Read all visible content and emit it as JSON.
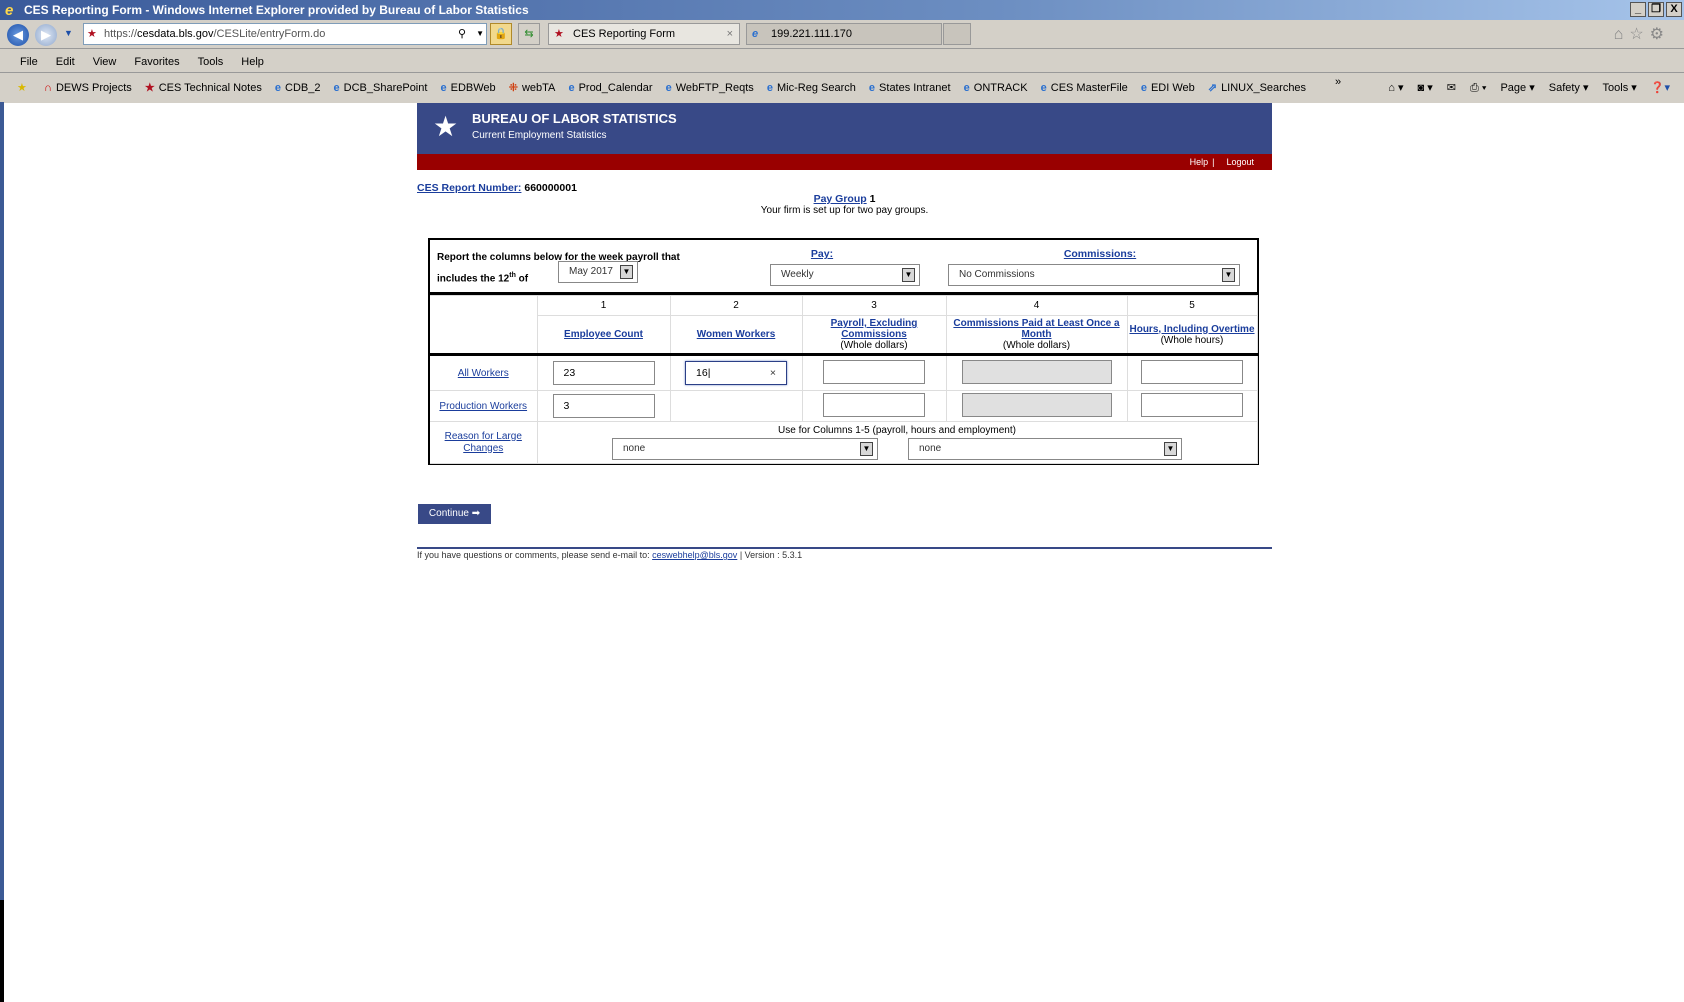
{
  "window": {
    "title": "CES Reporting Form - Windows Internet Explorer provided by Bureau of Labor Statistics",
    "controls": [
      "_",
      "❐",
      "X"
    ]
  },
  "browser": {
    "url_prefix": "https://",
    "url_domain": "cesdata.bls.gov",
    "url_path": "/CESLite/entryForm.do",
    "tabs": [
      {
        "label": "CES Reporting Form",
        "active": true
      },
      {
        "label": "199.221.111.170",
        "active": false
      }
    ],
    "menu": [
      "File",
      "Edit",
      "View",
      "Favorites",
      "Tools",
      "Help"
    ],
    "favorites": [
      "DEWS Projects",
      "CES Technical Notes",
      "CDB_2",
      "DCB_SharePoint",
      "EDBWeb",
      "webTA",
      "Prod_Calendar",
      "WebFTP_Reqts",
      "Mic-Reg Search",
      "States Intranet",
      "ONTRACK",
      "CES MasterFile",
      "EDI Web",
      "LINUX_Searches"
    ],
    "commands": [
      "Page ▾",
      "Safety ▾",
      "Tools ▾"
    ]
  },
  "header": {
    "org": "BUREAU OF LABOR STATISTICS",
    "program": "Current Employment Statistics",
    "help": "Help",
    "logout": "Logout",
    "colors": {
      "banner": "#384987",
      "bar": "#990000"
    }
  },
  "report": {
    "number_label": "CES Report Number:",
    "number": "660000001",
    "pay_group_label": "Pay Group",
    "pay_group": "1",
    "pay_group_note": "Your firm is set up for two pay groups."
  },
  "form": {
    "intro_line1": "Report the columns below for the week payroll that",
    "intro_line2a": "includes the 12",
    "intro_sup": "th",
    "intro_line2b": " of",
    "month": "May 2017",
    "pay_label": "Pay:",
    "pay": "Weekly",
    "commissions_label": "Commissions:",
    "commissions": "No Commissions",
    "columns": [
      {
        "num": "1",
        "title": "Employee Count",
        "unit": ""
      },
      {
        "num": "2",
        "title": "Women Workers",
        "unit": ""
      },
      {
        "num": "3",
        "title": "Payroll, Excluding Commissions",
        "unit": "(Whole dollars)"
      },
      {
        "num": "4",
        "title": "Commissions Paid at Least Once a Month",
        "unit": "(Whole dollars)"
      },
      {
        "num": "5",
        "title": "Hours, Including Overtime",
        "unit": "(Whole hours)"
      }
    ],
    "rows": [
      {
        "label": "All Workers",
        "values": [
          "23",
          "16",
          "",
          "",
          ""
        ]
      },
      {
        "label": "Production Workers",
        "values": [
          "3",
          "",
          "",
          ""
        ]
      }
    ],
    "reason_label": "Reason for Large Changes",
    "reason_note": "Use for Columns 1-5 (payroll, hours and employment)",
    "reason1": "none",
    "reason2": "none"
  },
  "continue": "Continue ➡",
  "footer": {
    "text": "If you have questions or comments, please send e-mail to: ",
    "email": "ceswebhelp@bls.gov",
    "version": " | Version : 5.3.1"
  }
}
